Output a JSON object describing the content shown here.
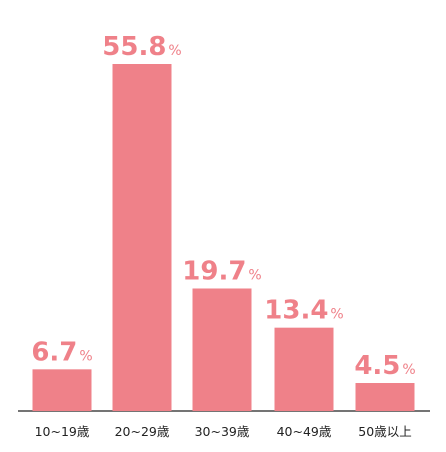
{
  "chart_data": {
    "type": "bar",
    "categories": [
      "10~19歳",
      "20~29歳",
      "30~39歳",
      "40~49歳",
      "50歳以上"
    ],
    "values": [
      6.7,
      55.8,
      19.7,
      13.4,
      4.5
    ],
    "value_labels": [
      "6.7",
      "55.8",
      "19.7",
      "13.4",
      "4.5"
    ],
    "unit": "%",
    "ylim": [
      0,
      55.8
    ],
    "grid": false,
    "legend": "none",
    "colors": {
      "bar": "#ef8189",
      "label": "#ef8189",
      "axis": "#222222",
      "tick_text": "#222222"
    }
  }
}
